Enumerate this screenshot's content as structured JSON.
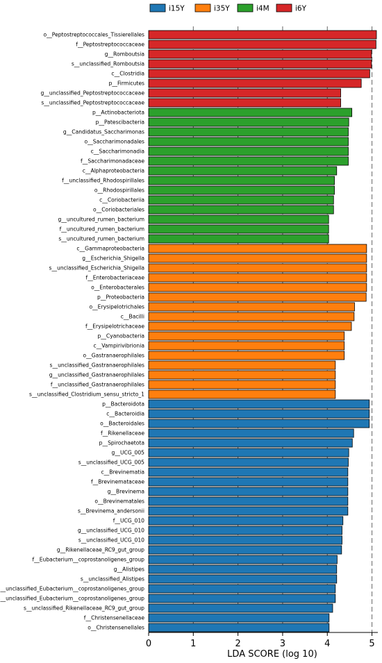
{
  "chart_data": {
    "type": "bar",
    "orientation": "horizontal",
    "title": "",
    "xlabel": "LDA SCORE (log 10)",
    "ylabel": "",
    "xlim": [
      0,
      5.1
    ],
    "xticks": [
      0,
      1,
      2,
      3,
      4,
      5
    ],
    "grid": "vertical dashed",
    "legend": {
      "placement": "top",
      "entries": [
        {
          "name": "i15Y",
          "color": "#1f77b4"
        },
        {
          "name": "i35Y",
          "color": "#ff7f0e"
        },
        {
          "name": "i4M",
          "color": "#2ca02c"
        },
        {
          "name": "i6Y",
          "color": "#d62728"
        }
      ]
    },
    "bars": [
      {
        "label": "o__Peptostreptococcales_Tissierellales",
        "value": 5.1,
        "group": "i6Y"
      },
      {
        "label": "f__Peptostreptococcaceae",
        "value": 5.09,
        "group": "i6Y"
      },
      {
        "label": "g__Romboutsia",
        "value": 4.99,
        "group": "i6Y"
      },
      {
        "label": "s__unclassified_Romboutsia",
        "value": 4.99,
        "group": "i6Y"
      },
      {
        "label": "c__Clostridia",
        "value": 4.95,
        "group": "i6Y"
      },
      {
        "label": "p__Firmicutes",
        "value": 4.76,
        "group": "i6Y"
      },
      {
        "label": "g__unclassified_Peptostreptococcaceae",
        "value": 4.3,
        "group": "i6Y"
      },
      {
        "label": "s__unclassified_Peptostreptococcaceae",
        "value": 4.3,
        "group": "i6Y"
      },
      {
        "label": "p__Actinobacteriota",
        "value": 4.55,
        "group": "i4M"
      },
      {
        "label": "p__Patescibacteria",
        "value": 4.48,
        "group": "i4M"
      },
      {
        "label": "g__Candidatus_Saccharimonas",
        "value": 4.47,
        "group": "i4M"
      },
      {
        "label": "o__Saccharimonadales",
        "value": 4.47,
        "group": "i4M"
      },
      {
        "label": "c__Saccharimonadia",
        "value": 4.47,
        "group": "i4M"
      },
      {
        "label": "f__Saccharimonadaceae",
        "value": 4.47,
        "group": "i4M"
      },
      {
        "label": "c__Alphaproteobacteria",
        "value": 4.21,
        "group": "i4M"
      },
      {
        "label": "f__unclassified_Rhodospirillales",
        "value": 4.16,
        "group": "i4M"
      },
      {
        "label": "o__Rhodospirillales",
        "value": 4.16,
        "group": "i4M"
      },
      {
        "label": "c__Coriobacteriia",
        "value": 4.14,
        "group": "i4M"
      },
      {
        "label": "o__Coriobacteriales",
        "value": 4.14,
        "group": "i4M"
      },
      {
        "label": "g__uncultured_rumen_bacterium",
        "value": 4.03,
        "group": "i4M"
      },
      {
        "label": "f__uncultured_rumen_bacterium",
        "value": 4.03,
        "group": "i4M"
      },
      {
        "label": "s__uncultured_rumen_bacterium",
        "value": 4.03,
        "group": "i4M"
      },
      {
        "label": "c__Gammaproteobacteria",
        "value": 4.88,
        "group": "i35Y"
      },
      {
        "label": "g__Escherichia_Shigella",
        "value": 4.88,
        "group": "i35Y"
      },
      {
        "label": "s__unclassified_Escherichia_Shigella",
        "value": 4.88,
        "group": "i35Y"
      },
      {
        "label": "f__Enterobacteriaceae",
        "value": 4.88,
        "group": "i35Y"
      },
      {
        "label": "o__Enterobacterales",
        "value": 4.88,
        "group": "i35Y"
      },
      {
        "label": "p__Proteobacteria",
        "value": 4.87,
        "group": "i35Y"
      },
      {
        "label": "o__Erysipelotrichales",
        "value": 4.61,
        "group": "i35Y"
      },
      {
        "label": "c__Bacilli",
        "value": 4.6,
        "group": "i35Y"
      },
      {
        "label": "f__Erysipelotrichaceae",
        "value": 4.54,
        "group": "i35Y"
      },
      {
        "label": "p__Cyanobacteria",
        "value": 4.38,
        "group": "i35Y"
      },
      {
        "label": "c__Vampirivibrionia",
        "value": 4.38,
        "group": "i35Y"
      },
      {
        "label": "o__Gastranaerophilales",
        "value": 4.38,
        "group": "i35Y"
      },
      {
        "label": "s__unclassified_Gastranaerophilales",
        "value": 4.18,
        "group": "i35Y"
      },
      {
        "label": "g__unclassified_Gastranaerophilales",
        "value": 4.18,
        "group": "i35Y"
      },
      {
        "label": "f__unclassified_Gastranaerophilales",
        "value": 4.18,
        "group": "i35Y"
      },
      {
        "label": "s__unclassified_Clostridium_sensu_stricto_1",
        "value": 4.18,
        "group": "i35Y"
      },
      {
        "label": "p__Bacteroidota",
        "value": 4.94,
        "group": "i15Y"
      },
      {
        "label": "c__Bacteroidia",
        "value": 4.94,
        "group": "i15Y"
      },
      {
        "label": "o__Bacteroidales",
        "value": 4.94,
        "group": "i15Y"
      },
      {
        "label": "f__Rikenellaceae",
        "value": 4.59,
        "group": "i15Y"
      },
      {
        "label": "p__Spirochaetota",
        "value": 4.56,
        "group": "i15Y"
      },
      {
        "label": "g__UCG_005",
        "value": 4.48,
        "group": "i15Y"
      },
      {
        "label": "s__unclassified_UCG_005",
        "value": 4.47,
        "group": "i15Y"
      },
      {
        "label": "c__Brevinematia",
        "value": 4.46,
        "group": "i15Y"
      },
      {
        "label": "f__Brevinemataceae",
        "value": 4.46,
        "group": "i15Y"
      },
      {
        "label": "g__Brevinema",
        "value": 4.46,
        "group": "i15Y"
      },
      {
        "label": "o__Brevinematales",
        "value": 4.46,
        "group": "i15Y"
      },
      {
        "label": "s__Brevinema_andersonii",
        "value": 4.46,
        "group": "i15Y"
      },
      {
        "label": "f__UCG_010",
        "value": 4.35,
        "group": "i15Y"
      },
      {
        "label": "g__unclassified_UCG_010",
        "value": 4.33,
        "group": "i15Y"
      },
      {
        "label": "s__unclassified_UCG_010",
        "value": 4.33,
        "group": "i15Y"
      },
      {
        "label": "g__Rikenellaceae_RC9_gut_group",
        "value": 4.32,
        "group": "i15Y"
      },
      {
        "label": "f__Eubacterium__coprostanoligenes_group",
        "value": 4.22,
        "group": "i15Y"
      },
      {
        "label": "g__Alistipes",
        "value": 4.21,
        "group": "i15Y"
      },
      {
        "label": "s__unclassified_Alistipes",
        "value": 4.21,
        "group": "i15Y"
      },
      {
        "label": "g__unclassified_Eubacterium__coprostanoligenes_group",
        "value": 4.18,
        "group": "i15Y"
      },
      {
        "label": "s__unclassified_Eubacterium__coprostanoligenes_group",
        "value": 4.18,
        "group": "i15Y"
      },
      {
        "label": "s__unclassified_Rikenellaceae_RC9_gut_group",
        "value": 4.12,
        "group": "i15Y"
      },
      {
        "label": "f__Christensenellaceae",
        "value": 4.04,
        "group": "i15Y"
      },
      {
        "label": "o__Christensenellales",
        "value": 4.04,
        "group": "i15Y"
      }
    ]
  }
}
